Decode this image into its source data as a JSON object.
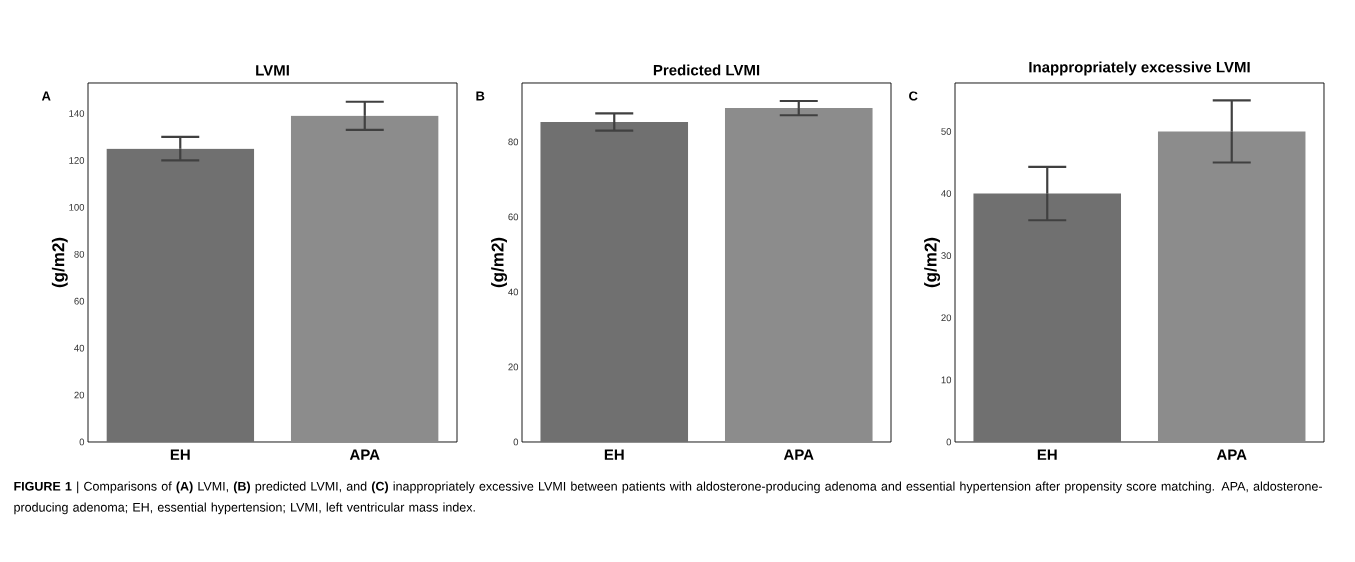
{
  "chart_data": [
    {
      "type": "bar",
      "title": "LVMI",
      "ylabel": "(g/m2)",
      "categories": [
        "EH",
        "APA"
      ],
      "values": [
        125,
        139
      ],
      "errors": [
        5,
        6
      ],
      "colors": [
        "#707070",
        "#8c8c8c"
      ],
      "ylim": [
        0,
        153
      ],
      "yticks": [
        0,
        20,
        40,
        60,
        80,
        100,
        120,
        140
      ],
      "annotations": [
        "A",
        "**FIGURE 1** | Comparisons of **(A)** LVMI, **(B)** predicted LVMI, and **(C)** inappropriately excessive LVMI between patients with aldosterone-producing adenoma and essential hypertension after propensity score matching. APA, aldosterone-producing adenoma; EH, essential hypertension; LVMI, left ventricular mass index."
      ]
    },
    {
      "type": "bar",
      "title": "Predicted LVMI",
      "ylabel": "(g/m2)",
      "categories": [
        "EH",
        "APA"
      ],
      "values": [
        85.3,
        89
      ],
      "errors": [
        2.3,
        1.9
      ],
      "colors": [
        "#707070",
        "#8c8c8c"
      ],
      "ylim": [
        0,
        95.7
      ],
      "yticks": [
        0,
        20,
        40,
        60,
        80
      ],
      "annotations": [
        "B"
      ]
    },
    {
      "type": "bar",
      "title": "Inappropriately excessive LVMI",
      "ylabel": "(g/m2)",
      "categories": [
        "EH",
        "APA"
      ],
      "values": [
        40,
        50
      ],
      "errors": [
        4.3,
        5
      ],
      "colors": [
        "#707070",
        "#8c8c8c"
      ],
      "ylim": [
        0,
        57.8
      ],
      "yticks": [
        0,
        10,
        20,
        30,
        40,
        50
      ],
      "annotations": [
        "C"
      ]
    }
  ]
}
